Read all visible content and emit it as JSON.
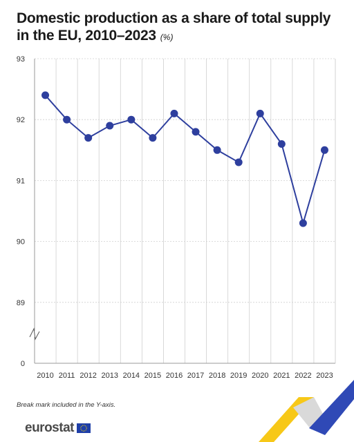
{
  "title": "Domestic production as a share of total supply in the EU, 2010–2023",
  "unit": "(%)",
  "footnote": "Break mark included in the Y-axis.",
  "brand": "eurostat",
  "colors": {
    "series": "#2e3f9e",
    "grid": "#cfcfcf",
    "axis": "#9a9a9a"
  },
  "chart_data": {
    "type": "line",
    "x": [
      "2010",
      "2011",
      "2012",
      "2013",
      "2014",
      "2015",
      "2016",
      "2017",
      "2018",
      "2019",
      "2020",
      "2021",
      "2022",
      "2023"
    ],
    "series": [
      {
        "values": [
          92.4,
          92.0,
          91.7,
          91.9,
          92.0,
          91.7,
          92.1,
          91.8,
          91.5,
          91.3,
          92.1,
          91.6,
          90.3,
          91.5
        ]
      }
    ],
    "y_ticks": [
      "93",
      "92",
      "91",
      "90",
      "89",
      "0"
    ],
    "ylim": [
      89,
      93
    ],
    "y_axis_break": true,
    "grid": true,
    "xlabel": "",
    "ylabel": ""
  }
}
